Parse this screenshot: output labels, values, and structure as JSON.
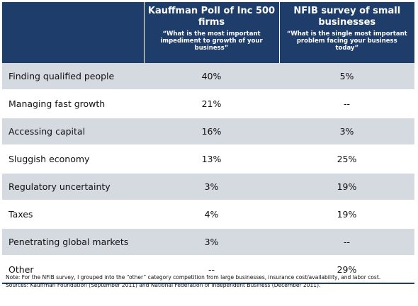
{
  "colors": {
    "header_bg": "#1f3d6b",
    "row_shaded": "#d5d9e0",
    "row_plain": "#ffffff"
  },
  "header": {
    "col1": "",
    "col2_title": "Kauffman Poll of Inc 500 firms",
    "col2_subtitle": "“What is the most important impediment to growth of your business”",
    "col3_title": "NFIB survey of small businesses",
    "col3_subtitle": "“What is the single most important problem facing your business today”"
  },
  "chart_data": {
    "type": "table",
    "columns": [
      "",
      "Kauffman Poll of Inc 500 firms",
      "NFIB survey of small businesses"
    ],
    "rows": [
      {
        "label": "Finding qualified people",
        "kauffman": "40%",
        "nfib": "5%"
      },
      {
        "label": "Managing fast growth",
        "kauffman": "21%",
        "nfib": "--"
      },
      {
        "label": "Accessing capital",
        "kauffman": "16%",
        "nfib": "3%"
      },
      {
        "label": "Sluggish economy",
        "kauffman": "13%",
        "nfib": "25%"
      },
      {
        "label": "Regulatory uncertainty",
        "kauffman": "3%",
        "nfib": "19%"
      },
      {
        "label": "Taxes",
        "kauffman": "4%",
        "nfib": "19%"
      },
      {
        "label": "Penetrating global markets",
        "kauffman": "3%",
        "nfib": "--"
      },
      {
        "label": "Other",
        "kauffman": "--",
        "nfib": "29%"
      }
    ]
  },
  "footnotes": {
    "note": "Note: For the NFIB survey, I grouped into the “other” category competition from large businesses, insurance cost/availability, and labor cost.",
    "sources": "Sources: Kauffman Foundation (September 2011) and National Federation of Independent Business (December 2011)."
  }
}
